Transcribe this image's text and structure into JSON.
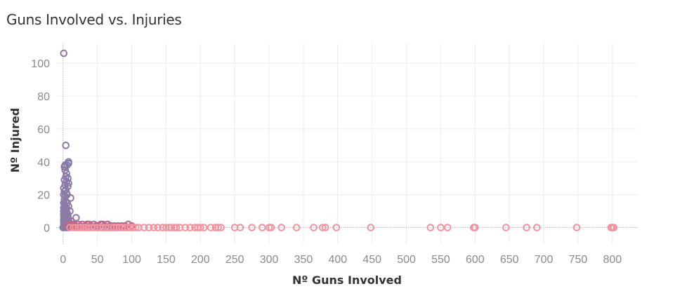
{
  "chart_data": {
    "type": "scatter",
    "title": "Guns Involved vs. Injuries",
    "xlabel": "Nº Guns Involved",
    "ylabel": "Nº Injured",
    "xlim": [
      -10,
      837
    ],
    "ylim": [
      -10,
      112
    ],
    "xticks": [
      "0",
      "50",
      "100",
      "150",
      "200",
      "250",
      "300",
      "350",
      "400",
      "450",
      "500",
      "550",
      "600",
      "650",
      "700",
      "750",
      "800"
    ],
    "yticks": [
      "0",
      "20",
      "40",
      "60",
      "80",
      "100"
    ],
    "grid": true,
    "legend": "none",
    "colors": {
      "purple": "#8a7aa6",
      "pink": "#f0929f",
      "mauve": "#b9688a"
    },
    "series": [
      {
        "color": "#8a7aa6",
        "points": [
          [
            1,
            106
          ],
          [
            4,
            50
          ],
          [
            8,
            40
          ],
          [
            8,
            39
          ],
          [
            3,
            38
          ],
          [
            6,
            38
          ],
          [
            2,
            37
          ],
          [
            3,
            35
          ],
          [
            5,
            33
          ],
          [
            4,
            31
          ],
          [
            7,
            30
          ],
          [
            2,
            29
          ],
          [
            5,
            28
          ],
          [
            8,
            27
          ],
          [
            3,
            26
          ],
          [
            7,
            25
          ],
          [
            1,
            24
          ],
          [
            4,
            23
          ],
          [
            2,
            22
          ],
          [
            5,
            21
          ],
          [
            1,
            20
          ],
          [
            6,
            20
          ],
          [
            3,
            19
          ],
          [
            11,
            18
          ],
          [
            2,
            17
          ],
          [
            4,
            16
          ],
          [
            1,
            15
          ],
          [
            6,
            15
          ],
          [
            2,
            14
          ],
          [
            3,
            13
          ],
          [
            8,
            13
          ],
          [
            1,
            12
          ],
          [
            5,
            12
          ],
          [
            2,
            11
          ],
          [
            4,
            11
          ],
          [
            1,
            10
          ],
          [
            10,
            10
          ],
          [
            3,
            9
          ],
          [
            6,
            9
          ],
          [
            1,
            8
          ],
          [
            2,
            8
          ],
          [
            5,
            8
          ],
          [
            1,
            7
          ],
          [
            3,
            7
          ],
          [
            7,
            7
          ],
          [
            2,
            6
          ],
          [
            4,
            6
          ],
          [
            19,
            6
          ],
          [
            1,
            5
          ],
          [
            3,
            5
          ],
          [
            6,
            5
          ],
          [
            8,
            5
          ],
          [
            1,
            4
          ],
          [
            2,
            4
          ],
          [
            4,
            4
          ],
          [
            12,
            4
          ],
          [
            1,
            3
          ],
          [
            3,
            3
          ],
          [
            5,
            3
          ],
          [
            9,
            3
          ],
          [
            2,
            2
          ],
          [
            4,
            2
          ],
          [
            6,
            2
          ],
          [
            15,
            2
          ],
          [
            1,
            1
          ],
          [
            3,
            1
          ],
          [
            7,
            1
          ],
          [
            10,
            1
          ],
          [
            0,
            0
          ],
          [
            2,
            0
          ],
          [
            5,
            0
          ],
          [
            8,
            0
          ]
        ]
      },
      {
        "color": "#b9688a",
        "points": [
          [
            8,
            2
          ],
          [
            12,
            2
          ],
          [
            18,
            1
          ],
          [
            22,
            2
          ],
          [
            28,
            2
          ],
          [
            32,
            1
          ],
          [
            35,
            2
          ],
          [
            40,
            1
          ],
          [
            45,
            2
          ],
          [
            50,
            1
          ],
          [
            55,
            2
          ],
          [
            60,
            1
          ],
          [
            65,
            2
          ],
          [
            70,
            1
          ],
          [
            75,
            1
          ],
          [
            80,
            1
          ],
          [
            85,
            1
          ],
          [
            90,
            1
          ],
          [
            95,
            2
          ],
          [
            100,
            1
          ],
          [
            13,
            1
          ],
          [
            25,
            1
          ],
          [
            38,
            2
          ],
          [
            48,
            1
          ],
          [
            58,
            2
          ],
          [
            68,
            1
          ],
          [
            6,
            1
          ],
          [
            16,
            2
          ]
        ]
      },
      {
        "color": "#f0929f",
        "points": [
          [
            10,
            0
          ],
          [
            15,
            0
          ],
          [
            18,
            0
          ],
          [
            22,
            0
          ],
          [
            26,
            0
          ],
          [
            30,
            0
          ],
          [
            33,
            0
          ],
          [
            37,
            0
          ],
          [
            42,
            0
          ],
          [
            46,
            0
          ],
          [
            50,
            0
          ],
          [
            54,
            0
          ],
          [
            58,
            0
          ],
          [
            62,
            0
          ],
          [
            66,
            0
          ],
          [
            70,
            0
          ],
          [
            74,
            0
          ],
          [
            78,
            0
          ],
          [
            82,
            0
          ],
          [
            86,
            0
          ],
          [
            90,
            0
          ],
          [
            94,
            0
          ],
          [
            98,
            0
          ],
          [
            102,
            0
          ],
          [
            106,
            0
          ],
          [
            110,
            0
          ],
          [
            118,
            0
          ],
          [
            125,
            0
          ],
          [
            132,
            0
          ],
          [
            138,
            0
          ],
          [
            145,
            0
          ],
          [
            150,
            0
          ],
          [
            155,
            0
          ],
          [
            158,
            0
          ],
          [
            162,
            0
          ],
          [
            165,
            0
          ],
          [
            170,
            0
          ],
          [
            178,
            0
          ],
          [
            185,
            0
          ],
          [
            192,
            0
          ],
          [
            196,
            0
          ],
          [
            200,
            0
          ],
          [
            205,
            0
          ],
          [
            215,
            0
          ],
          [
            222,
            0
          ],
          [
            226,
            0
          ],
          [
            230,
            0
          ],
          [
            250,
            0
          ],
          [
            258,
            0
          ],
          [
            275,
            0
          ],
          [
            290,
            0
          ],
          [
            300,
            0
          ],
          [
            303,
            0
          ],
          [
            318,
            0
          ],
          [
            340,
            0
          ],
          [
            365,
            0
          ],
          [
            378,
            0
          ],
          [
            382,
            0
          ],
          [
            398,
            0
          ],
          [
            448,
            0
          ],
          [
            535,
            0
          ],
          [
            550,
            0
          ],
          [
            560,
            0
          ],
          [
            598,
            0
          ],
          [
            600,
            0
          ],
          [
            645,
            0
          ],
          [
            675,
            0
          ],
          [
            690,
            0
          ],
          [
            748,
            0
          ],
          [
            798,
            0
          ],
          [
            800,
            0
          ],
          [
            802,
            0
          ]
        ]
      }
    ]
  }
}
